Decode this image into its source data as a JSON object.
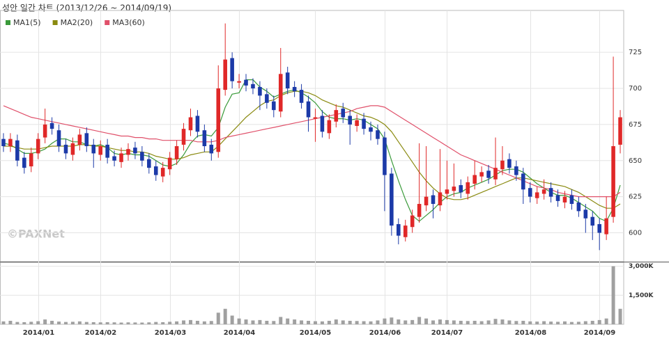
{
  "chart_data": {
    "type": "candlestick",
    "title": "성안 일간 차트 (2013/12/26 ~ 2014/09/19)",
    "watermark": "©PAXNet",
    "up_color": "#e02828",
    "down_color": "#1c3aa8",
    "categories": [
      null,
      null,
      null,
      null,
      null,
      "2014/01",
      null,
      null,
      null,
      null,
      null,
      null,
      null,
      null,
      "2014/02",
      null,
      null,
      null,
      null,
      null,
      null,
      null,
      null,
      null,
      "2014/03",
      null,
      null,
      null,
      null,
      null,
      null,
      null,
      null,
      null,
      "2014/04",
      null,
      null,
      null,
      null,
      null,
      null,
      null,
      null,
      null,
      null,
      "2014/05",
      null,
      null,
      null,
      null,
      null,
      null,
      null,
      null,
      null,
      "2014/06",
      null,
      null,
      null,
      null,
      null,
      null,
      null,
      null,
      "2014/07",
      null,
      null,
      null,
      null,
      null,
      null,
      null,
      null,
      null,
      null,
      null,
      "2014/08",
      null,
      null,
      null,
      null,
      null,
      null,
      null,
      null,
      null,
      "2014/09",
      null,
      null,
      null
    ],
    "candles": [
      [
        665,
        669,
        656,
        660
      ],
      [
        660,
        669,
        656,
        665
      ],
      [
        664,
        668,
        646,
        650
      ],
      [
        652,
        656,
        641,
        645
      ],
      [
        646,
        659,
        642,
        655
      ],
      [
        655,
        669,
        651,
        665
      ],
      [
        666,
        686,
        662,
        675
      ],
      [
        676,
        680,
        668,
        672
      ],
      [
        671,
        675,
        656,
        660
      ],
      [
        661,
        665,
        651,
        655
      ],
      [
        654,
        666,
        650,
        662
      ],
      [
        661,
        672,
        657,
        668
      ],
      [
        669,
        673,
        656,
        660
      ],
      [
        661,
        665,
        645,
        655
      ],
      [
        654,
        664,
        650,
        660
      ],
      [
        661,
        665,
        648,
        652
      ],
      [
        653,
        657,
        646,
        650
      ],
      [
        649,
        659,
        645,
        655
      ],
      [
        654,
        662,
        650,
        658
      ],
      [
        659,
        663,
        651,
        655
      ],
      [
        656,
        660,
        646,
        650
      ],
      [
        651,
        655,
        641,
        645
      ],
      [
        646,
        650,
        636,
        640
      ],
      [
        639,
        649,
        635,
        645
      ],
      [
        644,
        656,
        640,
        652
      ],
      [
        651,
        664,
        647,
        660
      ],
      [
        661,
        676,
        657,
        672
      ],
      [
        671,
        686,
        667,
        680
      ],
      [
        681,
        685,
        666,
        670
      ],
      [
        671,
        675,
        656,
        660
      ],
      [
        661,
        665,
        650,
        655
      ],
      [
        656,
        716,
        652,
        700
      ],
      [
        699,
        745,
        695,
        720
      ],
      [
        721,
        725,
        700,
        705
      ],
      [
        704,
        710,
        700,
        705
      ],
      [
        706,
        710,
        698,
        702
      ],
      [
        703,
        707,
        696,
        700
      ],
      [
        701,
        705,
        685,
        695
      ],
      [
        696,
        700,
        686,
        690
      ],
      [
        691,
        695,
        680,
        685
      ],
      [
        684,
        728,
        680,
        710
      ],
      [
        711,
        715,
        696,
        700
      ],
      [
        701,
        705,
        694,
        698
      ],
      [
        699,
        703,
        686,
        690
      ],
      [
        691,
        695,
        670,
        680
      ],
      [
        679,
        686,
        663,
        680
      ],
      [
        681,
        685,
        666,
        670
      ],
      [
        669,
        682,
        665,
        678
      ],
      [
        677,
        689,
        673,
        685
      ],
      [
        686,
        690,
        676,
        680
      ],
      [
        681,
        685,
        661,
        675
      ],
      [
        674,
        682,
        670,
        678
      ],
      [
        679,
        683,
        668,
        672
      ],
      [
        673,
        677,
        664,
        670
      ],
      [
        671,
        675,
        661,
        665
      ],
      [
        666,
        670,
        615,
        640
      ],
      [
        641,
        645,
        598,
        605
      ],
      [
        606,
        610,
        592,
        598
      ],
      [
        597,
        609,
        594,
        605
      ],
      [
        604,
        616,
        600,
        612
      ],
      [
        611,
        662,
        607,
        620
      ],
      [
        619,
        660,
        615,
        625
      ],
      [
        626,
        630,
        610,
        620
      ],
      [
        619,
        658,
        615,
        628
      ],
      [
        627,
        650,
        623,
        630
      ],
      [
        629,
        648,
        625,
        632
      ],
      [
        633,
        637,
        624,
        628
      ],
      [
        627,
        639,
        623,
        635
      ],
      [
        634,
        650,
        630,
        640
      ],
      [
        639,
        646,
        635,
        642
      ],
      [
        643,
        647,
        634,
        638
      ],
      [
        637,
        666,
        633,
        645
      ],
      [
        644,
        660,
        640,
        650
      ],
      [
        651,
        655,
        641,
        645
      ],
      [
        646,
        650,
        636,
        640
      ],
      [
        641,
        645,
        620,
        630
      ],
      [
        631,
        635,
        621,
        625
      ],
      [
        624,
        632,
        620,
        628
      ],
      [
        627,
        637,
        623,
        630
      ],
      [
        631,
        635,
        621,
        625
      ],
      [
        626,
        630,
        618,
        622
      ],
      [
        621,
        629,
        617,
        625
      ],
      [
        626,
        630,
        616,
        620
      ],
      [
        621,
        625,
        611,
        615
      ],
      [
        616,
        620,
        600,
        610
      ],
      [
        611,
        615,
        595,
        605
      ],
      [
        606,
        610,
        588,
        600
      ],
      [
        599,
        625,
        595,
        610
      ],
      [
        611,
        722,
        607,
        660
      ],
      [
        661,
        685,
        655,
        680
      ]
    ],
    "series": [
      {
        "name": "MA1(5)",
        "color": "#3a9a3a",
        "values": [
          662,
          661,
          658,
          655,
          655,
          656,
          658,
          662,
          665,
          665,
          663,
          663,
          661,
          660,
          661,
          659,
          655,
          654,
          655,
          654,
          654,
          653,
          650,
          647,
          646,
          648,
          654,
          662,
          667,
          668,
          667,
          673,
          687,
          696,
          697,
          706,
          706,
          701,
          698,
          694,
          696,
          698,
          699,
          697,
          694,
          690,
          684,
          680,
          679,
          679,
          678,
          679,
          678,
          675,
          672,
          665,
          650,
          636,
          623,
          612,
          608,
          612,
          616,
          621,
          625,
          627,
          628,
          631,
          633,
          635,
          637,
          640,
          643,
          644,
          644,
          642,
          638,
          634,
          631,
          628,
          626,
          626,
          624,
          621,
          618,
          615,
          610,
          608,
          617,
          633
        ]
      },
      {
        "name": "MA2(20)",
        "color": "#8a8a10",
        "values": [
          660,
          660,
          659,
          658,
          658,
          658,
          659,
          660,
          660,
          660,
          660,
          661,
          661,
          660,
          660,
          659,
          658,
          657,
          657,
          656,
          656,
          655,
          653,
          652,
          651,
          651,
          652,
          654,
          655,
          656,
          656,
          660,
          665,
          670,
          675,
          680,
          684,
          688,
          691,
          692,
          695,
          697,
          698,
          698,
          697,
          695,
          692,
          690,
          688,
          687,
          685,
          683,
          681,
          680,
          678,
          675,
          670,
          663,
          656,
          649,
          642,
          636,
          631,
          627,
          624,
          623,
          623,
          624,
          626,
          628,
          630,
          632,
          634,
          636,
          638,
          638,
          637,
          636,
          635,
          634,
          633,
          632,
          630,
          628,
          625,
          622,
          619,
          617,
          617,
          620
        ]
      },
      {
        "name": "MA3(60)",
        "color": "#e0506a",
        "values": [
          688,
          686,
          684,
          682,
          680,
          679,
          678,
          677,
          676,
          675,
          674,
          673,
          672,
          671,
          670,
          669,
          668,
          667,
          667,
          666,
          666,
          665,
          665,
          664,
          664,
          664,
          664,
          664,
          663,
          663,
          663,
          664,
          666,
          667,
          668,
          669,
          670,
          671,
          672,
          673,
          674,
          675,
          676,
          677,
          678,
          679,
          680,
          681,
          682,
          683,
          684,
          686,
          687,
          688,
          688,
          687,
          684,
          681,
          678,
          675,
          672,
          669,
          666,
          663,
          660,
          657,
          654,
          652,
          650,
          648,
          646,
          644,
          642,
          640,
          638,
          636,
          634,
          632,
          631,
          630,
          628,
          627,
          626,
          625,
          625,
          625,
          625,
          625,
          625,
          628
        ]
      }
    ],
    "ylim": [
      580,
      754
    ],
    "yticks": [
      600,
      625,
      650,
      675,
      700,
      725
    ],
    "grid": true,
    "volume": {
      "color": "#a0a0a0",
      "values": [
        150,
        180,
        120,
        110,
        130,
        160,
        250,
        180,
        140,
        120,
        130,
        150,
        120,
        110,
        100,
        110,
        100,
        90,
        100,
        95,
        90,
        100,
        120,
        110,
        130,
        150,
        200,
        220,
        180,
        150,
        170,
        600,
        800,
        450,
        300,
        250,
        200,
        220,
        180,
        170,
        380,
        300,
        250,
        200,
        180,
        160,
        150,
        180,
        250,
        200,
        180,
        170,
        160,
        150,
        200,
        300,
        350,
        250,
        200,
        220,
        380,
        300,
        200,
        250,
        220,
        200,
        180,
        170,
        180,
        160,
        200,
        280,
        250,
        200,
        170,
        180,
        150,
        140,
        160,
        140,
        130,
        150,
        120,
        130,
        160,
        180,
        220,
        300,
        3000,
        800
      ],
      "ylim": [
        0,
        3200
      ],
      "yticks": [
        {
          "value": 1500,
          "label": "1,500K"
        },
        {
          "value": 3000,
          "label": "3,000K"
        }
      ]
    }
  }
}
